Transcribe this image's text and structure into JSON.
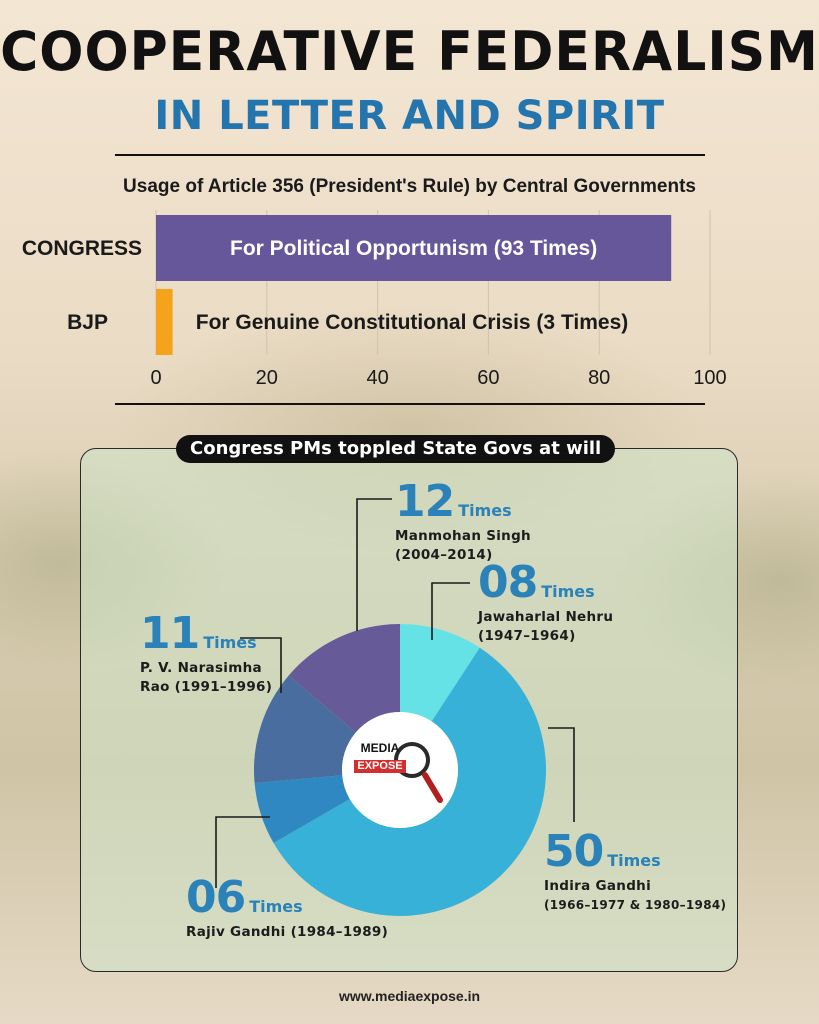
{
  "header": {
    "title": "COOPERATIVE FEDERALISM",
    "subtitle": "IN LETTER AND SPIRIT"
  },
  "chart_data": [
    {
      "type": "bar",
      "orientation": "horizontal",
      "title": "Usage of Article 356 (President's Rule) by Central Governments",
      "categories": [
        "CONGRESS",
        "BJP"
      ],
      "values": [
        93,
        3
      ],
      "bar_labels": [
        "For Political Opportunism (93 Times)",
        "For Genuine Constitutional Crisis (3 Times)"
      ],
      "colors": [
        "#65579a",
        "#f5a31a"
      ],
      "xlim": [
        0,
        100
      ],
      "xticks": [
        0,
        20,
        40,
        60,
        80,
        100
      ],
      "grid": true
    },
    {
      "type": "pie",
      "donut": true,
      "title": "Congress PMs toppled State Govs at will",
      "slices": [
        {
          "value": 8,
          "number": "08",
          "unit": "Times",
          "name": "Jawaharlal Nehru",
          "period": "(1947–1964)",
          "color": "#64e2e6"
        },
        {
          "value": 50,
          "number": "50",
          "unit": "Times",
          "name": "Indira Gandhi",
          "period": "(1966–1977 & 1980–1984)",
          "color": "#38b1d8"
        },
        {
          "value": 6,
          "number": "06",
          "unit": "Times",
          "name": "Rajiv Gandhi (1984–1989)",
          "period": "",
          "color": "#2f88c2"
        },
        {
          "value": 11,
          "number": "11",
          "unit": "Times",
          "name": "P. V. Narasimha",
          "period": "Rao (1991–1996)",
          "color": "#4a6d9f"
        },
        {
          "value": 12,
          "number": "12",
          "unit": "Times",
          "name": "Manmohan Singh",
          "period": "(2004–2014)",
          "color": "#665a98"
        }
      ]
    }
  ],
  "logo": {
    "top": "MEDIA",
    "bottom": "EXPOSE"
  },
  "footer": {
    "url": "www.mediaexpose.in"
  }
}
